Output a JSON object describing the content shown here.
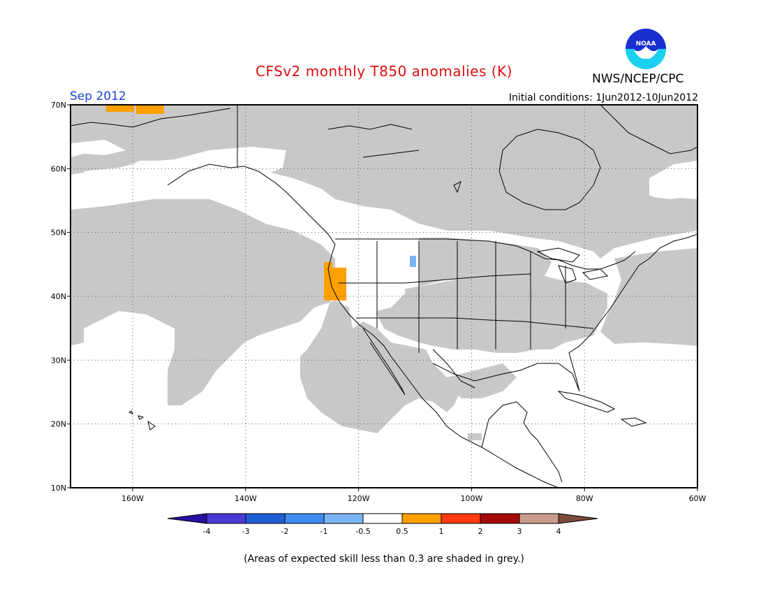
{
  "title": "CFSv2 monthly T850 anomalies (K)",
  "agency": "NWS/NCEP/CPC",
  "logo_text": "NOAA",
  "month": "Sep 2012",
  "initial_conditions": "Initial conditions: 1Jun2012-10Jun2012",
  "footnote": "(Areas of expected skill less than 0.3 are shaded in grey.)",
  "axes": {
    "lon_labels": [
      "160W",
      "140W",
      "120W",
      "100W",
      "80W",
      "60W"
    ],
    "lat_labels": [
      "70N",
      "60N",
      "50N",
      "40N",
      "30N",
      "20N",
      "10N"
    ],
    "lon_range": [
      -171,
      -60
    ],
    "lat_range": [
      10,
      70
    ]
  },
  "colorbar": {
    "labels": [
      "-4",
      "-3",
      "-2",
      "-1",
      "-0.5",
      "0.5",
      "1",
      "2",
      "3",
      "4"
    ],
    "colors": [
      "#2a0fa0",
      "#4a3ad4",
      "#1f5fd6",
      "#3f8df0",
      "#7ab4f4",
      "#ffffff",
      "#ff9f00",
      "#ff3b0f",
      "#a60a0a",
      "#c89d8d",
      "#7a4a3a"
    ]
  },
  "colors": {
    "low_skill_grey": "#c8c8c8",
    "warm_anomaly": "#ff9f00",
    "cool_anomaly": "#7ab4f4"
  }
}
